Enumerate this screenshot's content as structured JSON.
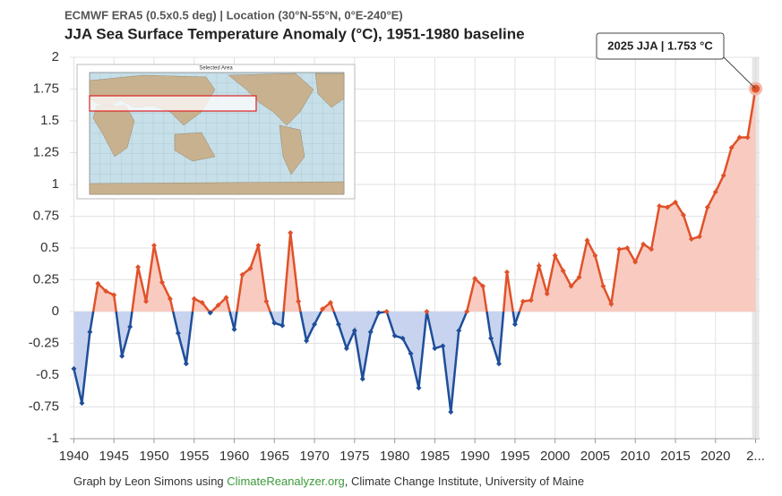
{
  "chart_data": {
    "type": "line",
    "subtitle": "ECMWF ERA5 (0.5x0.5 deg) | Location (30°N-55°N, 0°E-240°E)",
    "title": "JJA Sea Surface Temperature Anomaly (°C), 1951-1980 baseline",
    "annotation": "2025 JJA | 1.753 °C",
    "inset_title": "Selected Area",
    "credit": [
      "Graph by Leon Simons using ",
      "ClimateReanalyzer.org",
      ", Climate Change Institute, University of Maine"
    ],
    "x": [
      1940,
      1941,
      1942,
      1943,
      1944,
      1945,
      1946,
      1947,
      1948,
      1949,
      1950,
      1951,
      1952,
      1953,
      1954,
      1955,
      1956,
      1957,
      1958,
      1959,
      1960,
      1961,
      1962,
      1963,
      1964,
      1965,
      1966,
      1967,
      1968,
      1969,
      1970,
      1971,
      1972,
      1973,
      1974,
      1975,
      1976,
      1977,
      1978,
      1979,
      1980,
      1981,
      1982,
      1983,
      1984,
      1985,
      1986,
      1987,
      1988,
      1989,
      1990,
      1991,
      1992,
      1993,
      1994,
      1995,
      1996,
      1997,
      1998,
      1999,
      2000,
      2001,
      2002,
      2003,
      2004,
      2005,
      2006,
      2007,
      2008,
      2009,
      2010,
      2011,
      2012,
      2013,
      2014,
      2015,
      2016,
      2017,
      2018,
      2019,
      2020,
      2021,
      2022,
      2023,
      2024,
      2025
    ],
    "values": [
      -0.45,
      -0.72,
      -0.16,
      0.22,
      0.16,
      0.13,
      -0.35,
      -0.12,
      0.35,
      0.08,
      0.52,
      0.23,
      0.1,
      -0.17,
      -0.41,
      0.1,
      0.07,
      -0.01,
      0.05,
      0.11,
      -0.14,
      0.29,
      0.34,
      0.52,
      0.08,
      -0.09,
      -0.11,
      0.62,
      0.08,
      -0.23,
      -0.1,
      0.02,
      0.07,
      -0.1,
      -0.29,
      -0.15,
      -0.53,
      -0.16,
      -0.01,
      0.0,
      -0.19,
      -0.21,
      -0.33,
      -0.6,
      0.0,
      -0.29,
      -0.27,
      -0.79,
      -0.15,
      0.0,
      0.26,
      0.2,
      -0.21,
      -0.41,
      0.31,
      -0.1,
      0.08,
      0.09,
      0.36,
      0.14,
      0.44,
      0.32,
      0.2,
      0.27,
      0.56,
      0.44,
      0.2,
      0.06,
      0.49,
      0.5,
      0.39,
      0.53,
      0.49,
      0.83,
      0.82,
      0.86,
      0.76,
      0.57,
      0.59,
      0.82,
      0.94,
      1.07,
      1.29,
      1.37,
      1.37,
      1.753
    ],
    "positive_color": "#e0522a",
    "negative_color": "#1f4e99",
    "positive_fill": "#f9cbc0",
    "negative_fill": "#c8d4ef",
    "xlim": [
      1939.5,
      2025.5
    ],
    "xticks": [
      1940,
      1945,
      1950,
      1955,
      1960,
      1965,
      1970,
      1975,
      1980,
      1985,
      1990,
      1995,
      2000,
      2005,
      2010,
      2015,
      2020,
      {
        "value": 2025,
        "label": "2..."
      }
    ],
    "ylim": [
      -1,
      2
    ],
    "yticks": [
      -1,
      -0.75,
      -0.5,
      -0.25,
      0,
      0.25,
      0.5,
      0.75,
      1,
      1.25,
      1.5,
      1.75,
      2
    ],
    "grid": true
  }
}
